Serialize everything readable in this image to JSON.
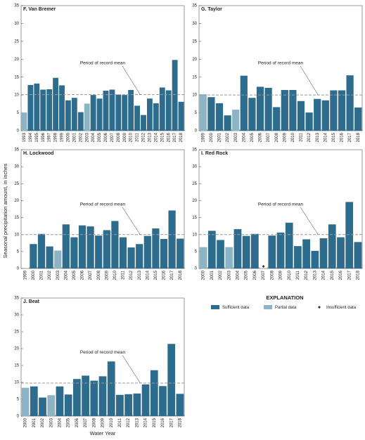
{
  "y_axis_label": "Seasonal precipitation amount, in inches",
  "x_axis_label": "Water Year",
  "explanation": {
    "title": "EXPLANATION",
    "items": [
      {
        "name": "Sufficient data",
        "color": "#2d6c8c",
        "marker": "bar"
      },
      {
        "name": "Partial data",
        "color": "#8db4c4",
        "marker": "bar"
      },
      {
        "name": "Insufficient data",
        "color": "#333333",
        "marker": "diamond"
      }
    ]
  },
  "chart_data": [
    {
      "type": "bar",
      "title": "F. Van Bremer",
      "annotation": "Period of record mean",
      "mean": 10.1,
      "ylim": [
        0,
        35
      ],
      "yticks": [
        0,
        5,
        10,
        15,
        20,
        25,
        30,
        35
      ],
      "categories": [
        "1993",
        "1994",
        "1995",
        "1996",
        "1997",
        "1998",
        "1999",
        "2000",
        "2001",
        "2002",
        "2003",
        "2004",
        "2005",
        "2006",
        "2007",
        "2008",
        "2009",
        "2010",
        "2011",
        "2012",
        "2013",
        "2014",
        "2015",
        "2016",
        "2017",
        "2018"
      ],
      "sufficient": [
        null,
        12.8,
        13.2,
        11.5,
        11.6,
        14.8,
        12.7,
        8.5,
        9.2,
        5.2,
        null,
        10.0,
        9.0,
        11.2,
        11.5,
        10.1,
        10.0,
        11.4,
        7.0,
        4.4,
        9.0,
        7.7,
        12.1,
        11.3,
        19.8,
        8.1
      ],
      "partial": [
        5.1,
        null,
        null,
        null,
        null,
        null,
        null,
        null,
        null,
        null,
        7.6,
        null,
        null,
        null,
        null,
        null,
        null,
        null,
        null,
        null,
        null,
        null,
        null,
        null,
        null,
        null
      ],
      "insufficient": [
        null,
        null,
        null,
        null,
        null,
        null,
        null,
        null,
        null,
        null,
        null,
        null,
        null,
        null,
        null,
        null,
        null,
        null,
        null,
        null,
        null,
        null,
        null,
        null,
        null,
        null
      ]
    },
    {
      "type": "bar",
      "title": "G. Taylor",
      "annotation": "Period of record mean",
      "mean": 10.0,
      "ylim": [
        0,
        35
      ],
      "yticks": [
        0,
        5,
        10,
        15,
        20,
        25,
        30,
        35
      ],
      "categories": [
        "1999",
        "2000",
        "2001",
        "2002",
        "2003",
        "2004",
        "2005",
        "2006",
        "2007",
        "2008",
        "2009",
        "2010",
        "2011",
        "2012",
        "2013",
        "2014",
        "2015",
        "2016",
        "2017",
        "2018"
      ],
      "sufficient": [
        null,
        9.4,
        7.7,
        4.3,
        null,
        15.4,
        9.2,
        12.3,
        12.0,
        6.6,
        11.4,
        11.4,
        8.3,
        5.1,
        8.9,
        8.5,
        11.3,
        11.3,
        15.5,
        6.5
      ],
      "partial": [
        10.2,
        null,
        null,
        null,
        5.9,
        null,
        null,
        null,
        null,
        null,
        null,
        null,
        null,
        null,
        null,
        null,
        null,
        null,
        null,
        null
      ],
      "insufficient": [
        null,
        null,
        null,
        null,
        null,
        null,
        null,
        null,
        null,
        null,
        null,
        null,
        null,
        null,
        null,
        null,
        null,
        null,
        null,
        null
      ]
    },
    {
      "type": "bar",
      "title": "H. Lockwood",
      "annotation": "Period of record mean",
      "mean": 10.0,
      "ylim": [
        0,
        35
      ],
      "yticks": [
        0,
        5,
        10,
        15,
        20,
        25,
        30,
        35
      ],
      "categories": [
        "1999",
        "2000",
        "2001",
        "2002",
        "2003",
        "2004",
        "2005",
        "2006",
        "2007",
        "2008",
        "2009",
        "2010",
        "2011",
        "2012",
        "2013",
        "2014",
        "2015",
        "2016",
        "2017",
        "2018"
      ],
      "sufficient": [
        null,
        7.2,
        10.2,
        6.5,
        null,
        13.0,
        9.2,
        12.7,
        12.4,
        9.7,
        11.3,
        14.0,
        9.2,
        6.2,
        7.2,
        9.6,
        11.8,
        8.7,
        17.1,
        8.8
      ],
      "partial": [
        null,
        null,
        null,
        null,
        5.3,
        null,
        null,
        null,
        null,
        null,
        null,
        null,
        null,
        null,
        null,
        null,
        null,
        null,
        null,
        null
      ],
      "insufficient": [
        null,
        null,
        null,
        null,
        null,
        null,
        null,
        null,
        null,
        null,
        null,
        null,
        null,
        null,
        null,
        null,
        null,
        null,
        null,
        null
      ]
    },
    {
      "type": "bar",
      "title": "I. Red Rock",
      "annotation": "Period of record mean",
      "mean": 10.0,
      "ylim": [
        0,
        35
      ],
      "yticks": [
        0,
        5,
        10,
        15,
        20,
        25,
        30,
        35
      ],
      "categories": [
        "2000",
        "2001",
        "2002",
        "2003",
        "2004",
        "2005",
        "2006",
        "2007",
        "2008",
        "2009",
        "2010",
        "2011",
        "2012",
        "2013",
        "2014",
        "2015",
        "2016",
        "2017",
        "2018"
      ],
      "sufficient": [
        null,
        11.1,
        8.4,
        null,
        11.6,
        9.6,
        10.2,
        null,
        9.7,
        10.6,
        13.5,
        6.6,
        8.6,
        5.2,
        8.9,
        13.0,
        9.2,
        19.6,
        7.8
      ],
      "partial": [
        6.3,
        null,
        null,
        6.3,
        null,
        null,
        null,
        null,
        null,
        null,
        null,
        null,
        null,
        null,
        null,
        null,
        null,
        null,
        null
      ],
      "insufficient": [
        null,
        null,
        null,
        null,
        null,
        null,
        null,
        0,
        null,
        null,
        null,
        null,
        null,
        null,
        null,
        null,
        null,
        null,
        null
      ]
    },
    {
      "type": "bar",
      "title": "J. Beat",
      "annotation": "Period of record mean",
      "mean": 9.8,
      "ylim": [
        0,
        35
      ],
      "yticks": [
        0,
        5,
        10,
        15,
        20,
        25,
        30,
        35
      ],
      "categories": [
        "2000",
        "2001",
        "2002",
        "2003",
        "2004",
        "2005",
        "2006",
        "2007",
        "2008",
        "2009",
        "2010",
        "2011",
        "2012",
        "2013",
        "2014",
        "2015",
        "2016",
        "2017",
        "2018"
      ],
      "sufficient": [
        null,
        8.8,
        5.5,
        null,
        8.8,
        6.4,
        11.0,
        12.0,
        10.5,
        11.8,
        16.2,
        6.3,
        6.5,
        6.7,
        9.4,
        13.6,
        8.9,
        21.4,
        6.6
      ],
      "partial": [
        8.4,
        null,
        null,
        6.2,
        null,
        null,
        null,
        null,
        null,
        null,
        null,
        null,
        null,
        null,
        null,
        null,
        null,
        null,
        null
      ],
      "insufficient": [
        null,
        null,
        null,
        null,
        null,
        null,
        null,
        null,
        null,
        null,
        null,
        null,
        null,
        null,
        null,
        null,
        null,
        null,
        null
      ]
    }
  ]
}
